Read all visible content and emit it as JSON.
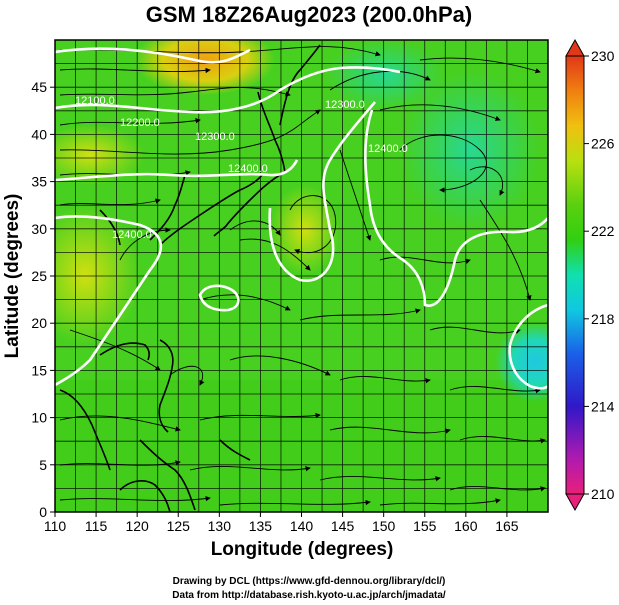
{
  "chart_data": {
    "type": "heatmap",
    "title": "GSM 18Z26Aug2023 (200.0hPa)",
    "xlabel": "Longitude (degrees)",
    "ylabel": "Latitude (degrees)",
    "xlim": [
      110,
      170
    ],
    "ylim": [
      0,
      50
    ],
    "x_ticks": [
      110,
      115,
      120,
      125,
      130,
      135,
      140,
      145,
      150,
      155,
      160,
      165
    ],
    "y_ticks": [
      0,
      5,
      10,
      15,
      20,
      25,
      30,
      35,
      40,
      45
    ],
    "colorbar": {
      "min": 210,
      "max": 230,
      "ticks": [
        230,
        226,
        222,
        218,
        214,
        210
      ],
      "colors": [
        "#e8207a",
        "#b01ab0",
        "#3018c8",
        "#1a60e8",
        "#10c8e0",
        "#10e0b0",
        "#30d010",
        "#5ad010",
        "#b8e010",
        "#f0c010",
        "#f08010",
        "#e03818"
      ]
    },
    "contour_labels": [
      "12100.0",
      "12200.0",
      "12300.0",
      "12400.0",
      "12300.0",
      "12400.0",
      "12400.0"
    ],
    "grid": true,
    "series": [
      {
        "name": "",
        "points": []
      }
    ]
  },
  "credits": {
    "line1": "Drawing by DCL (https://www.gfd-dennou.org/library/dcl/)",
    "line2": "Data from http://database.rish.kyoto-u.ac.jp/arch/jmadata/"
  }
}
